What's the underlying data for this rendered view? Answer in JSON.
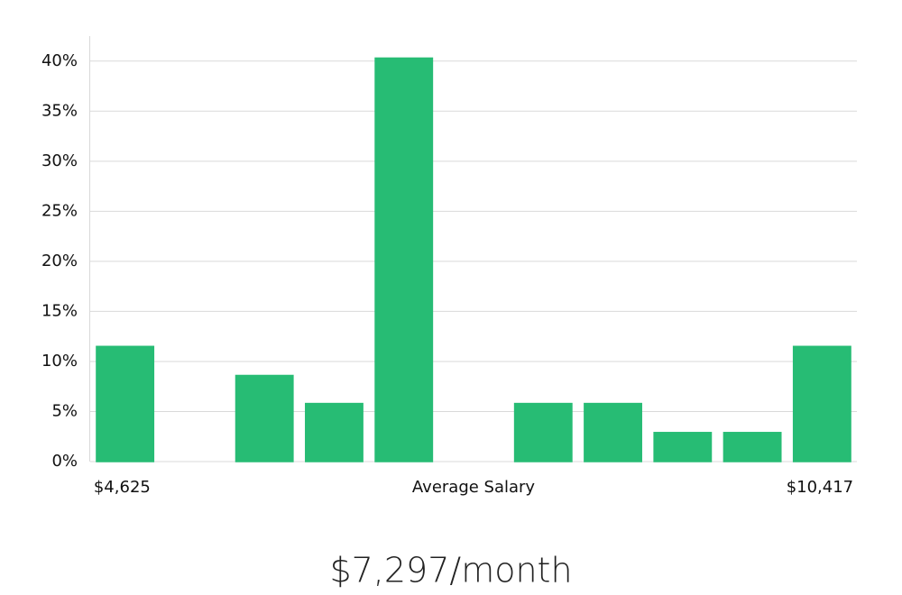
{
  "chart_data": {
    "type": "bar",
    "xlabel": "Average Salary",
    "subtitle": "$7,297/month",
    "categories": [
      "$4,625",
      null,
      null,
      null,
      null,
      null,
      null,
      null,
      null,
      null,
      "$10,417"
    ],
    "values": [
      11.5,
      0,
      8.6,
      5.8,
      40.3,
      0,
      5.8,
      5.8,
      2.9,
      2.9,
      11.5
    ],
    "colors": [
      "#27bc74",
      "#27bc74",
      "#27bc74",
      "#27bc74",
      "#27bc74",
      "#222222",
      "#27bc74",
      "#27bc74",
      "#27bc74",
      "#27bc74",
      "#27bc74"
    ],
    "ylim": [
      0,
      42.5
    ],
    "yticks": [
      {
        "value": 0,
        "label": "0%"
      },
      {
        "value": 5,
        "label": "5%"
      },
      {
        "value": 10,
        "label": "10%"
      },
      {
        "value": 15,
        "label": "15%"
      },
      {
        "value": 20,
        "label": "20%"
      },
      {
        "value": 25,
        "label": "25%"
      },
      {
        "value": 30,
        "label": "30%"
      },
      {
        "value": 35,
        "label": "35%"
      },
      {
        "value": 40,
        "label": "40%"
      }
    ],
    "grid": true
  }
}
